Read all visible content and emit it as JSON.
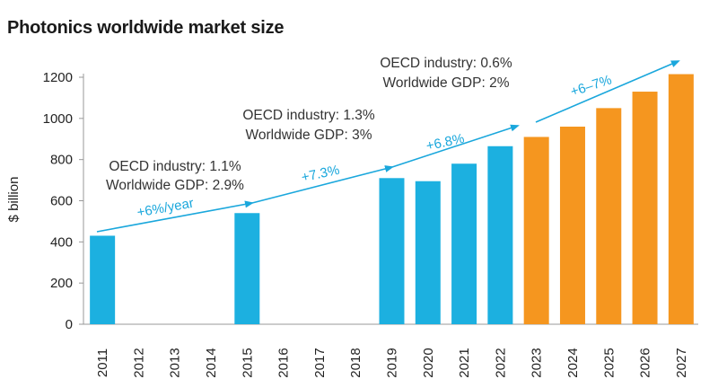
{
  "chart_data": {
    "type": "bar",
    "title": "Photonics worldwide market size",
    "ylabel": "$ billion",
    "xlabel": "",
    "ylim": [
      0,
      1200
    ],
    "yticks": [
      0,
      200,
      400,
      600,
      800,
      1000,
      1200
    ],
    "categories": [
      "2011",
      "2012",
      "2013",
      "2014",
      "2015",
      "2016",
      "2017",
      "2018",
      "2019",
      "2020",
      "2021",
      "2022",
      "2023",
      "2024",
      "2025",
      "2026",
      "2027"
    ],
    "values": [
      430,
      null,
      null,
      null,
      540,
      null,
      null,
      null,
      710,
      695,
      780,
      865,
      910,
      960,
      1050,
      1130,
      1215
    ],
    "bar_colors": {
      "historical": "#1cb0e0",
      "forecast": "#f5961f"
    },
    "forecast_from": "2023",
    "annotations": {
      "notes": [
        {
          "id": "n1",
          "lines": [
            "OECD industry: 1.1%",
            "Worldwide GDP: 2.9%"
          ]
        },
        {
          "id": "n2",
          "lines": [
            "OECD industry: 1.3%",
            "Worldwide GDP: 3%"
          ]
        },
        {
          "id": "n3",
          "lines": [
            "OECD industry: 0.6%",
            "Worldwide GDP: 2%"
          ]
        }
      ],
      "growth_labels": [
        "+6%/year",
        "+7.3%",
        "+6.8%",
        "+6–7%"
      ],
      "arrow_color": "#1aa7dc"
    },
    "grid": false
  }
}
